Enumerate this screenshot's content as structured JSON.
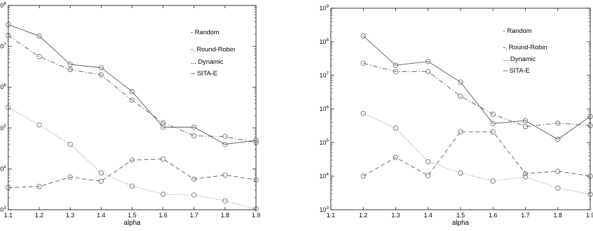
{
  "chart_data": [
    {
      "type": "line",
      "xlabel": "alpha",
      "ylabel": "",
      "yscale": "log",
      "xlim": [
        1.1,
        1.9
      ],
      "ylim": [
        1000,
        100000000
      ],
      "x_ticks": [
        "1.1",
        "1.2",
        "1.3",
        "1.4",
        "1.5",
        "1.6",
        "1.7",
        "1.8",
        "1.9"
      ],
      "y_tick_exponents": [
        "3",
        "4",
        "5",
        "6",
        "7",
        "8"
      ],
      "legend_placement": "top-right",
      "series": [
        {
          "name": "Random",
          "style": "solid",
          "x": [
            1.1,
            1.2,
            1.3,
            1.4,
            1.5,
            1.6,
            1.7,
            1.8,
            1.9
          ],
          "values": [
            34000000,
            18000000,
            3600000,
            3000000,
            780000,
            105000,
            105000,
            40000,
            50000
          ]
        },
        {
          "name": "Round-Robin",
          "style": "dash-dot",
          "x": [
            1.1,
            1.2,
            1.3,
            1.4,
            1.5,
            1.6,
            1.7,
            1.8,
            1.9
          ],
          "values": [
            18500000,
            5600000,
            2700000,
            2000000,
            480000,
            135000,
            65000,
            62000,
            44000
          ]
        },
        {
          "name": "Dynamic",
          "style": "dotted",
          "x": [
            1.1,
            1.2,
            1.3,
            1.4,
            1.5,
            1.6,
            1.7,
            1.8,
            1.9
          ],
          "values": [
            320000,
            120000,
            40000,
            8000,
            3800,
            2400,
            2300,
            1650,
            1050
          ]
        },
        {
          "name": "SITA-E",
          "style": "dashed",
          "x": [
            1.1,
            1.2,
            1.3,
            1.4,
            1.5,
            1.6,
            1.7,
            1.8,
            1.9
          ],
          "values": [
            3500,
            3700,
            6300,
            5000,
            16500,
            17500,
            5600,
            7100,
            5400
          ]
        }
      ]
    },
    {
      "type": "line",
      "xlabel": "alpha",
      "ylabel": "",
      "yscale": "log",
      "xlim": [
        1.1,
        1.9
      ],
      "ylim": [
        1000,
        1000000000
      ],
      "x_ticks": [
        "1.1",
        "1.2",
        "1.3",
        "1.4",
        "1.5",
        "1.6",
        "1.7",
        "1.8",
        "1.9"
      ],
      "y_tick_exponents": [
        "3",
        "4",
        "5",
        "6",
        "7",
        "8",
        "9"
      ],
      "legend_placement": "top-right",
      "series": [
        {
          "name": "Random",
          "style": "solid",
          "x": [
            1.2,
            1.3,
            1.4,
            1.5,
            1.6,
            1.7,
            1.8,
            1.9
          ],
          "values": [
            150000000,
            20000000,
            26000000,
            6300000,
            370000,
            450000,
            125000,
            600000
          ]
        },
        {
          "name": "Round-Robin",
          "style": "dash-dot",
          "x": [
            1.2,
            1.3,
            1.4,
            1.5,
            1.6,
            1.7,
            1.8,
            1.9
          ],
          "values": [
            23000000,
            13000000,
            13000000,
            2400000,
            700000,
            300000,
            380000,
            320000
          ]
        },
        {
          "name": "Dynamic",
          "style": "dotted",
          "x": [
            1.2,
            1.3,
            1.4,
            1.5,
            1.6,
            1.7,
            1.8,
            1.9
          ],
          "values": [
            740000,
            270000,
            27000,
            12500,
            7200,
            9500,
            4400,
            2900
          ]
        },
        {
          "name": "SITA-E",
          "style": "dashed",
          "x": [
            1.2,
            1.3,
            1.4,
            1.5,
            1.6,
            1.7,
            1.8,
            1.9
          ],
          "values": [
            10000,
            36000,
            10500,
            210000,
            210000,
            12000,
            14000,
            10000
          ]
        }
      ]
    }
  ],
  "legend_labels": [
    "- Random",
    "-. Round-Robin",
    "... Dynamic",
    "-- SITA-E"
  ],
  "tick_base": "10",
  "colors": {
    "axis": "#000000",
    "line": "#555555",
    "marker": "#666666",
    "background": "#ffffff"
  }
}
